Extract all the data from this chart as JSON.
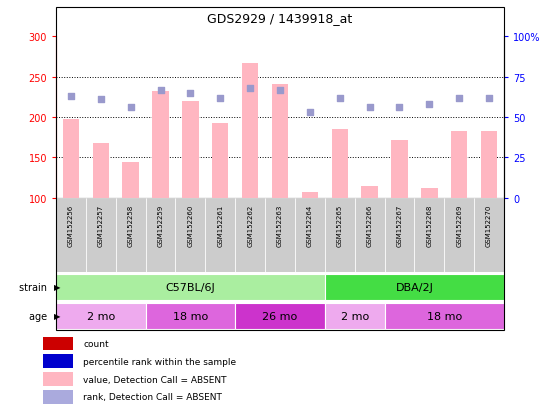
{
  "title": "GDS2929 / 1439918_at",
  "samples": [
    "GSM152256",
    "GSM152257",
    "GSM152258",
    "GSM152259",
    "GSM152260",
    "GSM152261",
    "GSM152262",
    "GSM152263",
    "GSM152264",
    "GSM152265",
    "GSM152266",
    "GSM152267",
    "GSM152268",
    "GSM152269",
    "GSM152270"
  ],
  "count_values": [
    197,
    168,
    144,
    232,
    220,
    193,
    267,
    241,
    107,
    185,
    115,
    172,
    112,
    183,
    183
  ],
  "rank_values": [
    63,
    61,
    56,
    67,
    65,
    62,
    68,
    67,
    53,
    62,
    56,
    56,
    58,
    62,
    62
  ],
  "ylim_left": [
    100,
    300
  ],
  "ylim_right": [
    0,
    100
  ],
  "yticks_left": [
    100,
    150,
    200,
    250,
    300
  ],
  "yticks_right": [
    0,
    25,
    50,
    75,
    100
  ],
  "ytick_right_labels": [
    "0",
    "25",
    "50",
    "75",
    "100%"
  ],
  "bar_base": 100,
  "strain_groups": [
    {
      "label": "C57BL/6J",
      "start": 0,
      "end": 9,
      "color": "#aaeea0"
    },
    {
      "label": "DBA/2J",
      "start": 9,
      "end": 15,
      "color": "#44dd44"
    }
  ],
  "age_groups": [
    {
      "label": "2 mo",
      "start": 0,
      "end": 3,
      "color": "#eeaaee"
    },
    {
      "label": "18 mo",
      "start": 3,
      "end": 6,
      "color": "#dd66dd"
    },
    {
      "label": "26 mo",
      "start": 6,
      "end": 9,
      "color": "#cc33cc"
    },
    {
      "label": "2 mo",
      "start": 9,
      "end": 11,
      "color": "#eeaaee"
    },
    {
      "label": "18 mo",
      "start": 11,
      "end": 15,
      "color": "#dd66dd"
    }
  ],
  "bar_color_absent": "#FFB6C1",
  "dot_color_absent": "#9999CC",
  "background_color": "#FFFFFF",
  "sample_label_bg": "#cccccc",
  "legend_face_colors": [
    "#CC0000",
    "#0000CD",
    "#FFB6C1",
    "#AAAADD"
  ],
  "legend_labels": [
    "count",
    "percentile rank within the sample",
    "value, Detection Call = ABSENT",
    "rank, Detection Call = ABSENT"
  ]
}
